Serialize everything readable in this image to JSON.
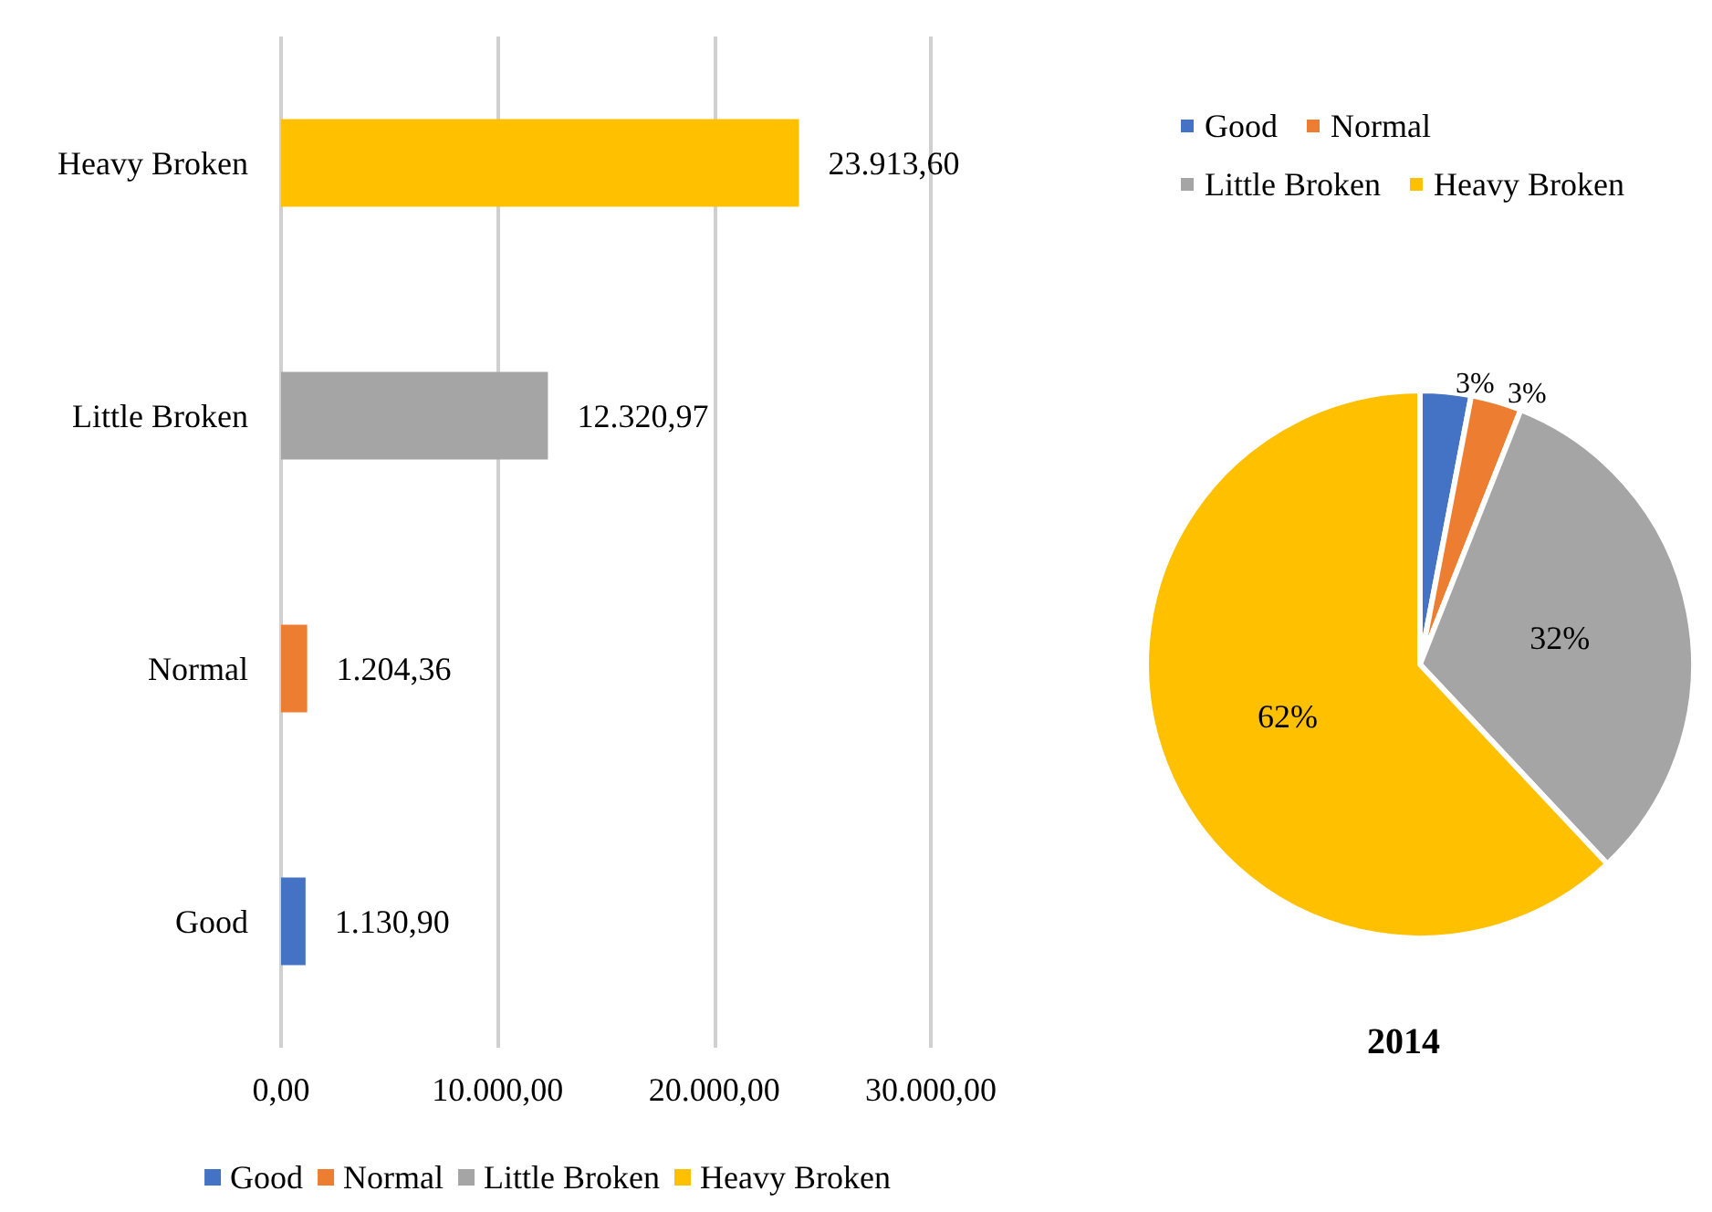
{
  "chart_data": [
    {
      "type": "bar",
      "orientation": "horizontal",
      "categories": [
        "Heavy Broken",
        "Little Broken",
        "Normal",
        "Good"
      ],
      "series": [
        {
          "name": "Good",
          "color": "#4472c4",
          "values": [
            null,
            null,
            null,
            1130.9
          ],
          "value_labels": [
            null,
            null,
            null,
            "1.130,90"
          ]
        },
        {
          "name": "Normal",
          "color": "#ed7d31",
          "values": [
            null,
            null,
            1204.36,
            null
          ],
          "value_labels": [
            null,
            null,
            "1.204,36",
            null
          ]
        },
        {
          "name": "Little Broken",
          "color": "#a5a5a5",
          "values": [
            null,
            12320.97,
            null,
            null
          ],
          "value_labels": [
            null,
            "12.320,97",
            null,
            null
          ]
        },
        {
          "name": "Heavy Broken",
          "color": "#ffc000",
          "values": [
            23913.6,
            null,
            null,
            null
          ],
          "value_labels": [
            "23.913,60",
            null,
            null,
            null
          ]
        }
      ],
      "xlim": [
        0,
        30000
      ],
      "xticks": [
        {
          "value": 0,
          "label": "0,00"
        },
        {
          "value": 10000,
          "label": "10.000,00"
        },
        {
          "value": 20000,
          "label": "20.000,00"
        },
        {
          "value": 30000,
          "label": "30.000,00"
        }
      ],
      "grid": "x",
      "legend": "bottom"
    },
    {
      "type": "pie",
      "title": "2014",
      "categories": [
        "Good",
        "Normal",
        "Little Broken",
        "Heavy Broken"
      ],
      "values": [
        3,
        3,
        32,
        62
      ],
      "colors": [
        "#4472c4",
        "#ed7d31",
        "#a5a5a5",
        "#ffc000"
      ],
      "value_labels": [
        "3%",
        "3%",
        "32%",
        "62%"
      ],
      "legend": "top right"
    }
  ]
}
